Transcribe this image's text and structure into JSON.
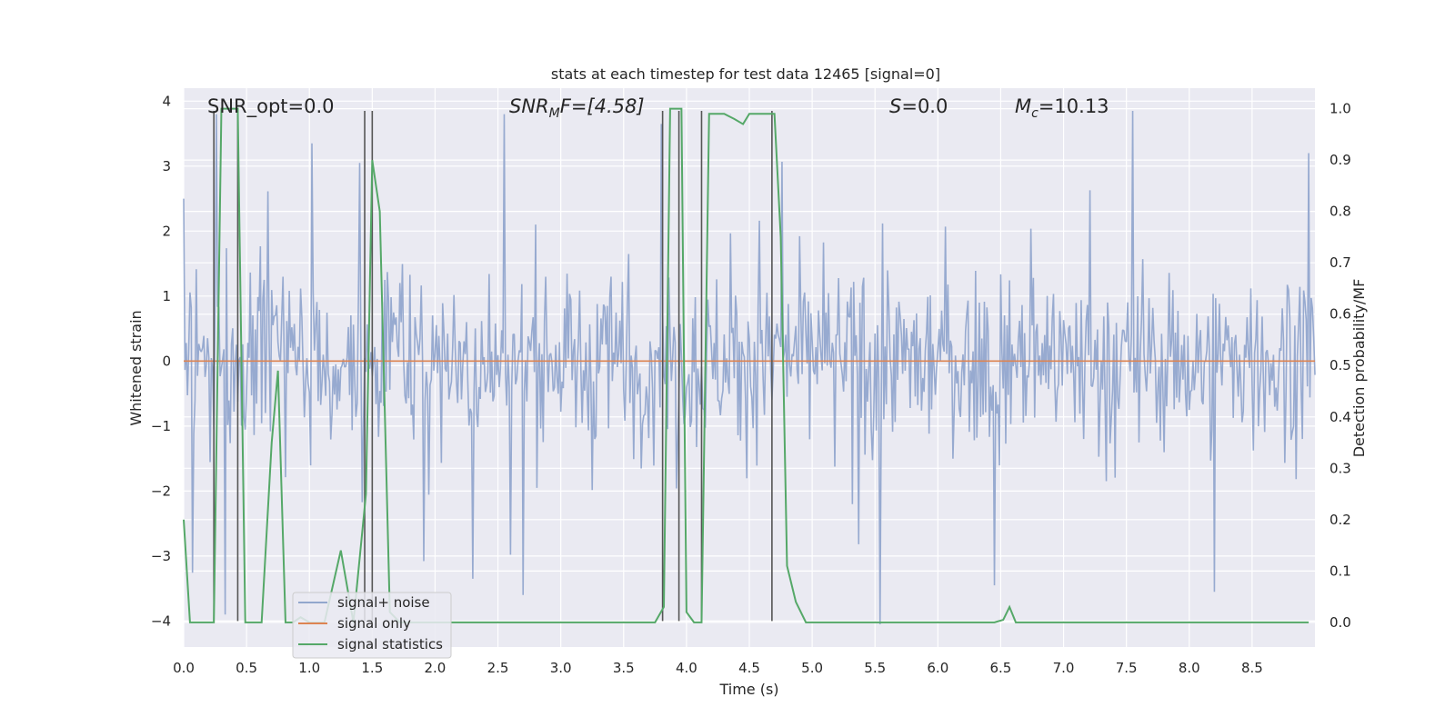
{
  "chart_data": {
    "type": "line",
    "title": "stats at each timestep for test data 12465 [signal=0]",
    "xlabel": "Time (s)",
    "ylabel": "Whitened strain",
    "y2label": "Detection probability/MF",
    "xlim": [
      0.0,
      9.0
    ],
    "ylim": [
      -4.4,
      4.2
    ],
    "y2lim": [
      -0.048,
      1.04
    ],
    "xticks": [
      "0.0",
      "0.5",
      "1.0",
      "1.5",
      "2.0",
      "2.5",
      "3.0",
      "3.5",
      "4.0",
      "4.5",
      "5.0",
      "5.5",
      "6.0",
      "6.5",
      "7.0",
      "7.5",
      "8.0",
      "8.5"
    ],
    "yticks": [
      "4",
      "3",
      "2",
      "1",
      "0",
      "−1",
      "−2",
      "−3",
      "−4"
    ],
    "y2ticks": [
      "1.0",
      "0.9",
      "0.8",
      "0.7",
      "0.6",
      "0.5",
      "0.4",
      "0.3",
      "0.2",
      "0.1",
      "0.0"
    ],
    "grid": true,
    "legend_position": "lower-left",
    "annotations": {
      "snr_opt": "SNR_opt=0.0",
      "snr_mf": "SNR",
      "snr_mf_sub": "M",
      "snr_mf_tail": "F=[4.58]",
      "s_var": "S",
      "s_val": "=0.0",
      "mc_var": "M",
      "mc_sub": "c",
      "mc_val": "=10.13"
    },
    "series": [
      {
        "name": "signal+ noise",
        "color": "#92a7cd",
        "description_kind": "noisy strain, band amplitude ~ ±1.5 with spikes to ±3.8",
        "sample_rate_hz": 100,
        "peaks": [
          {
            "x": 0.0,
            "y": 2.5
          },
          {
            "x": 0.26,
            "y": 3.8
          },
          {
            "x": 0.33,
            "y": -3.9
          },
          {
            "x": 1.02,
            "y": 3.35
          },
          {
            "x": 1.4,
            "y": 3.05
          },
          {
            "x": 2.3,
            "y": -3.35
          },
          {
            "x": 2.55,
            "y": 3.8
          },
          {
            "x": 2.7,
            "y": -3.6
          },
          {
            "x": 3.8,
            "y": 3.65
          },
          {
            "x": 5.54,
            "y": -4.05
          },
          {
            "x": 6.45,
            "y": -3.45
          },
          {
            "x": 7.55,
            "y": 3.85
          },
          {
            "x": 8.2,
            "y": -3.55
          },
          {
            "x": 8.95,
            "y": 3.2
          }
        ]
      },
      {
        "name": "signal only",
        "color": "#dd8452",
        "values_constant": 0.0
      },
      {
        "name": "signal statistics",
        "color": "#55a868",
        "axis": "right",
        "x": [
          0.0,
          0.05,
          0.17,
          0.24,
          0.3,
          0.43,
          0.49,
          0.62,
          0.7,
          0.75,
          0.81,
          0.87,
          0.93,
          1.0,
          1.12,
          1.25,
          1.35,
          1.45,
          1.5,
          1.56,
          1.64,
          1.72,
          2.0,
          2.5,
          3.0,
          3.5,
          3.75,
          3.82,
          3.87,
          3.96,
          4.0,
          4.06,
          4.12,
          4.18,
          4.3,
          4.38,
          4.45,
          4.5,
          4.6,
          4.7,
          4.75,
          4.8,
          4.87,
          4.95,
          5.0,
          6.0,
          6.45,
          6.52,
          6.57,
          6.62,
          7.0,
          8.0,
          8.95
        ],
        "y": [
          0.2,
          0.0,
          0.0,
          0.0,
          1.0,
          1.0,
          0.0,
          0.0,
          0.35,
          0.49,
          0.0,
          0.0,
          0.01,
          0.0,
          0.0,
          0.14,
          0.0,
          0.25,
          0.9,
          0.8,
          0.02,
          0.0,
          0.0,
          0.0,
          0.0,
          0.0,
          0.0,
          0.03,
          1.0,
          1.0,
          0.02,
          0.0,
          0.0,
          0.99,
          0.99,
          0.98,
          0.97,
          0.99,
          0.99,
          0.99,
          0.75,
          0.11,
          0.04,
          0.0,
          0.0,
          0.0,
          0.0,
          0.005,
          0.03,
          0.0,
          0.0,
          0.0,
          0.0
        ]
      }
    ],
    "vertical_lines": [
      {
        "x": 0.24,
        "y_top": 3.85,
        "y_bottom": -4.0
      },
      {
        "x": 0.43,
        "y_top": 3.85,
        "y_bottom": -4.0
      },
      {
        "x": 1.44,
        "y_top": 3.85,
        "y_bottom": -4.0
      },
      {
        "x": 1.5,
        "y_top": 3.85,
        "y_bottom": -4.0
      },
      {
        "x": 3.81,
        "y_top": 3.85,
        "y_bottom": -4.0
      },
      {
        "x": 3.94,
        "y_top": 3.85,
        "y_bottom": -4.0
      },
      {
        "x": 4.12,
        "y_top": 3.85,
        "y_bottom": -4.0
      },
      {
        "x": 4.68,
        "y_top": 3.85,
        "y_bottom": -4.0
      }
    ],
    "colors": {
      "plot_bg": "#eaeaf2",
      "grid": "#ffffff",
      "vline": "#555555"
    }
  }
}
